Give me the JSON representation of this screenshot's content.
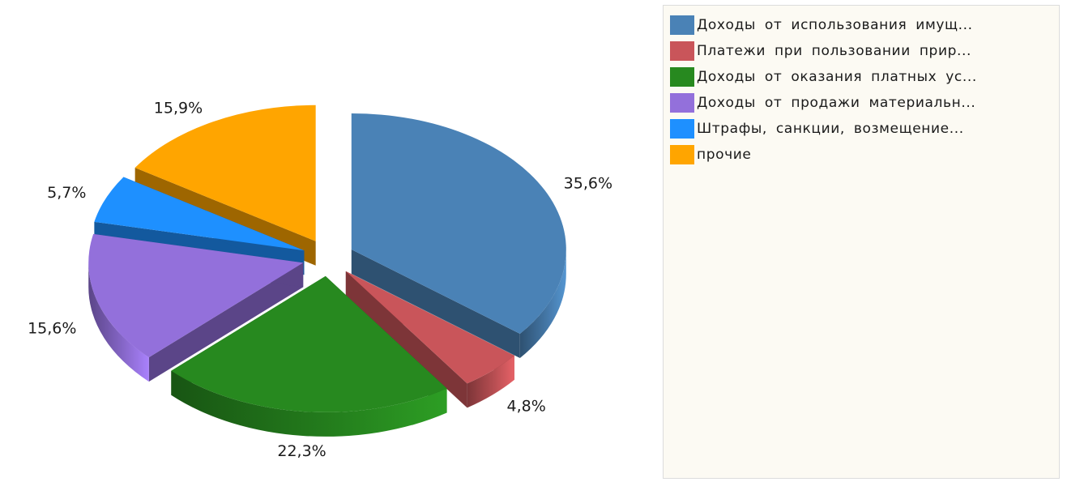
{
  "chart_data": {
    "type": "pie",
    "title": "",
    "slices": [
      {
        "label": "Доходы от использования имущ...",
        "value": 35.6,
        "value_label": "35,6%",
        "color": "#4a82b6"
      },
      {
        "label": "Платежи при пользовании прир...",
        "value": 4.8,
        "value_label": "4,8%",
        "color": "#c9555a"
      },
      {
        "label": "Доходы от оказания платных ус...",
        "value": 22.3,
        "value_label": "22,3%",
        "color": "#27891f"
      },
      {
        "label": "Доходы от продажи материальн...",
        "value": 15.6,
        "value_label": "15,6%",
        "color": "#9370db"
      },
      {
        "label": "Штрафы, санкции, возмещение...",
        "value": 5.7,
        "value_label": "5,7%",
        "color": "#1e90ff"
      },
      {
        "label": "прочие",
        "value": 15.9,
        "value_label": "15,9%",
        "color": "#ffa500"
      }
    ],
    "exploded": true,
    "style": "3d",
    "start_angle": "top",
    "direction": "clockwise",
    "legend_position": "right",
    "grid": false
  }
}
